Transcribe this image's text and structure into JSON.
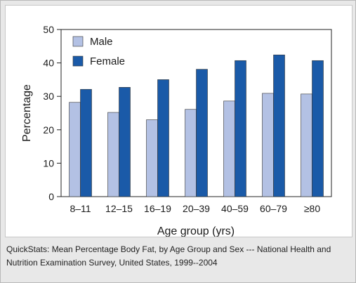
{
  "chart_data": {
    "type": "bar",
    "title": "",
    "xlabel": "Age group (yrs)",
    "ylabel": "Percentage",
    "ylim": [
      0,
      50
    ],
    "yticks": [
      0,
      10,
      20,
      30,
      40,
      50
    ],
    "categories": [
      "8–11",
      "12–15",
      "16–19",
      "20–39",
      "40–59",
      "60–79",
      "≥80"
    ],
    "series": [
      {
        "name": "Male",
        "color": "#b3c1e4",
        "values": [
          28.2,
          25.2,
          23.0,
          26.1,
          28.6,
          30.9,
          30.7
        ]
      },
      {
        "name": "Female",
        "color": "#1a5aa8",
        "values": [
          32.1,
          32.7,
          35.0,
          38.1,
          40.7,
          42.4,
          40.7
        ]
      }
    ],
    "legend_position": "top-left",
    "grid": false
  },
  "caption": "QuickStats: Mean Percentage Body Fat, by Age Group and Sex --- National Health and Nutrition Examination Survey, United States, 1999--2004"
}
